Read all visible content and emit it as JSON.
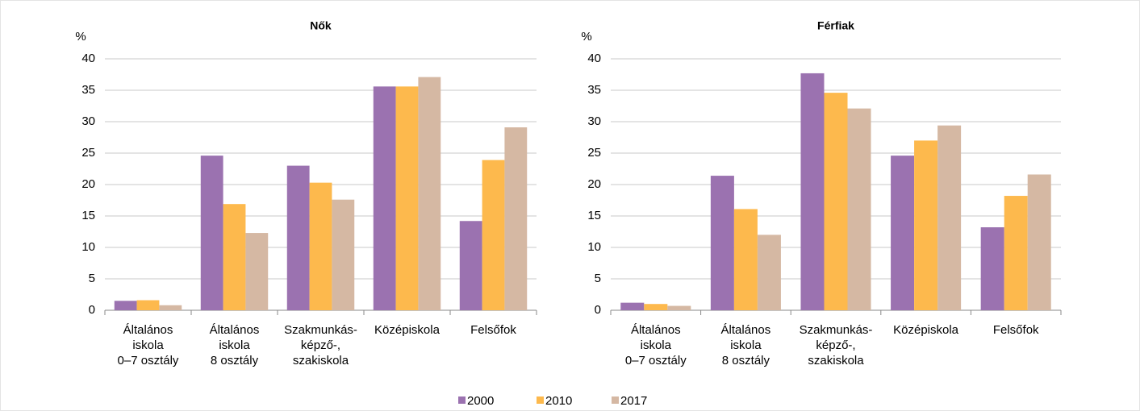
{
  "chart_data": [
    {
      "type": "bar",
      "title": "Nők",
      "ylabel": "%",
      "categories": [
        "Általános\niskola\n0–7 osztály",
        "Általános\niskola\n8 osztály",
        "Szakmunkás-\nképző-,\nszakiskola",
        "Középiskola",
        "Felsőfok"
      ],
      "series": [
        {
          "name": "2000",
          "color": "#9b72b0",
          "values": [
            1.5,
            24.6,
            23.0,
            35.6,
            14.2
          ]
        },
        {
          "name": "2010",
          "color": "#fdb94d",
          "values": [
            1.6,
            16.9,
            20.3,
            35.6,
            23.9
          ]
        },
        {
          "name": "2017",
          "color": "#d5b8a3",
          "values": [
            0.8,
            12.3,
            17.6,
            37.1,
            29.1
          ]
        }
      ],
      "ylim": [
        0,
        40
      ],
      "yticks": [
        0,
        5,
        10,
        15,
        20,
        25,
        30,
        35,
        40
      ],
      "grid": true
    },
    {
      "type": "bar",
      "title": "Férfiak",
      "ylabel": "%",
      "categories": [
        "Általános\niskola\n0–7 osztály",
        "Általános\niskola\n8 osztály",
        "Szakmunkás-\nképző-,\nszakiskola",
        "Középiskola",
        "Felsőfok"
      ],
      "series": [
        {
          "name": "2000",
          "color": "#9b72b0",
          "values": [
            1.2,
            21.4,
            37.7,
            24.6,
            13.2
          ]
        },
        {
          "name": "2010",
          "color": "#fdb94d",
          "values": [
            1.0,
            16.1,
            34.6,
            27.0,
            18.2
          ]
        },
        {
          "name": "2017",
          "color": "#d5b8a3",
          "values": [
            0.7,
            12.0,
            32.1,
            29.4,
            21.6
          ]
        }
      ],
      "ylim": [
        0,
        40
      ],
      "yticks": [
        0,
        5,
        10,
        15,
        20,
        25,
        30,
        35,
        40
      ],
      "grid": true
    }
  ]
}
